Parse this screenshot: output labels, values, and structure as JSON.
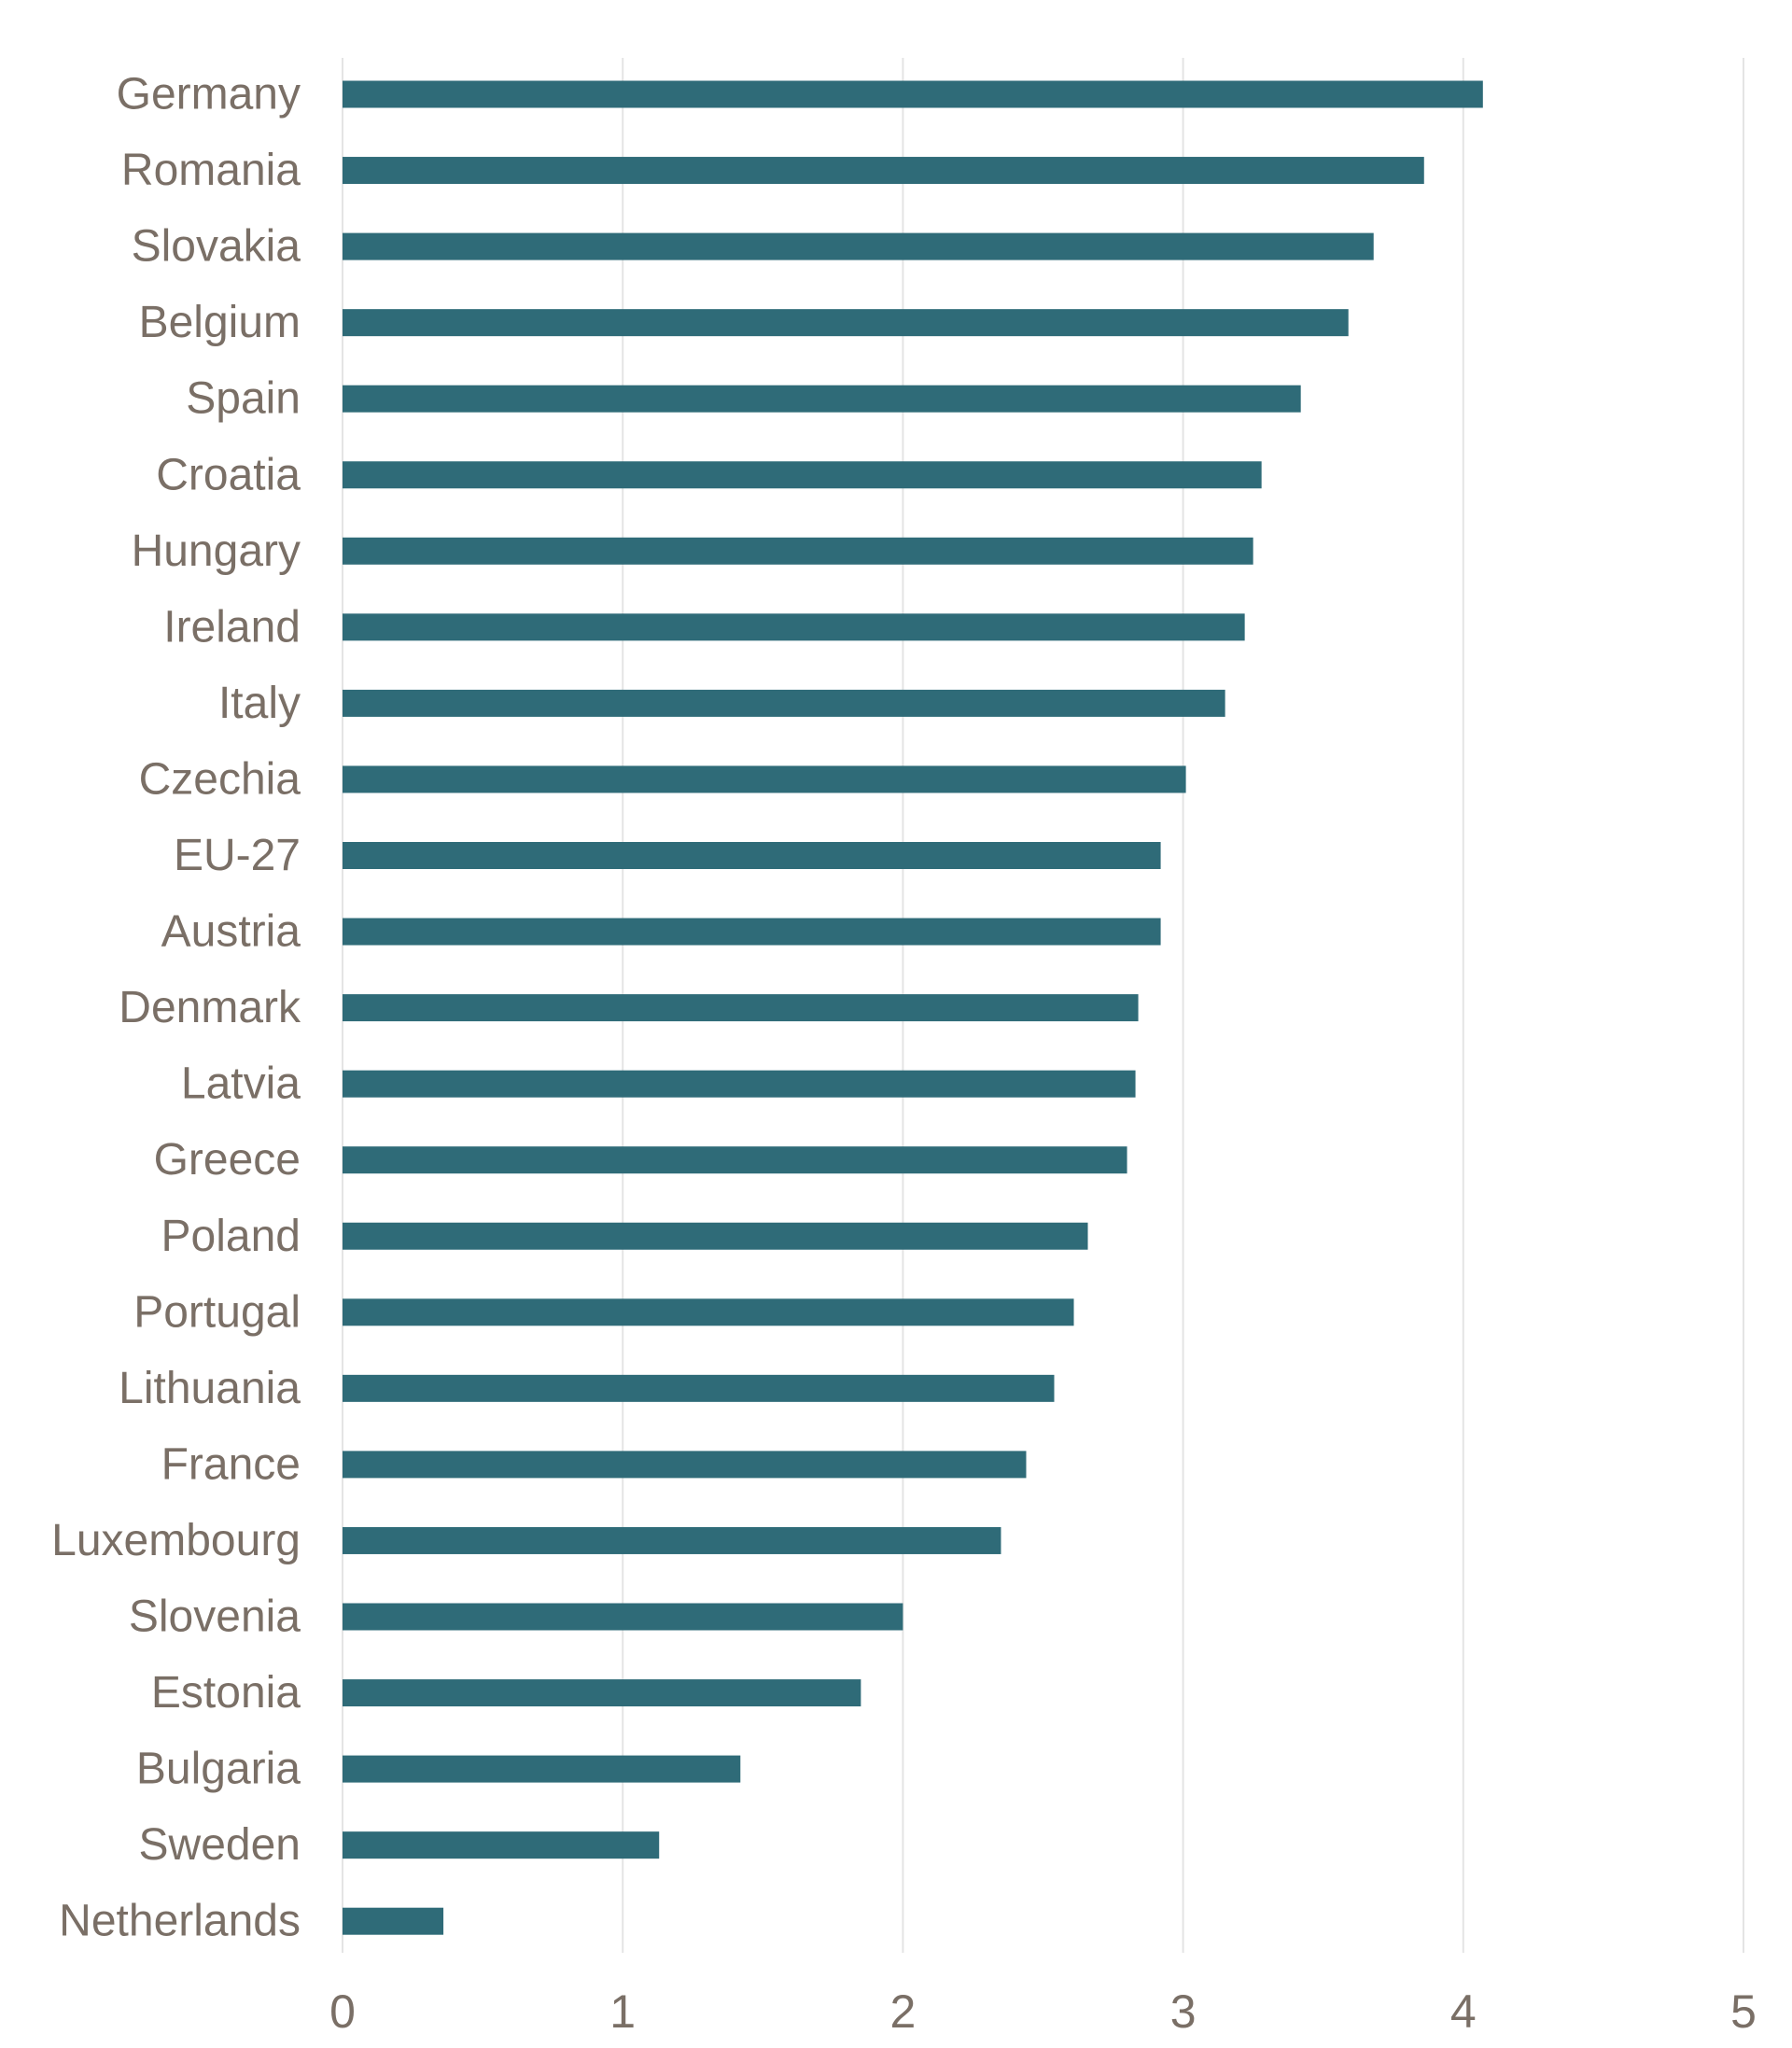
{
  "chart_data": {
    "type": "bar",
    "orientation": "horizontal",
    "categories": [
      "Germany",
      "Romania",
      "Slovakia",
      "Belgium",
      "Spain",
      "Croatia",
      "Hungary",
      "Ireland",
      "Italy",
      "Czechia",
      "EU-27",
      "Austria",
      "Denmark",
      "Latvia",
      "Greece",
      "Poland",
      "Portugal",
      "Lithuania",
      "France",
      "Luxembourg",
      "Slovenia",
      "Estonia",
      "Bulgaria",
      "Sweden",
      "Netherlands"
    ],
    "values": [
      4.07,
      3.86,
      3.68,
      3.59,
      3.42,
      3.28,
      3.25,
      3.22,
      3.15,
      3.01,
      2.92,
      2.92,
      2.84,
      2.83,
      2.8,
      2.66,
      2.61,
      2.54,
      2.44,
      2.35,
      2.0,
      1.85,
      1.42,
      1.13,
      0.36
    ],
    "xlim": [
      0,
      5
    ],
    "xticks": [
      "0",
      "1",
      "2",
      "3",
      "4",
      "5"
    ],
    "grid": "vertical",
    "legend": "none",
    "colors": {
      "bar": "#2F6B78",
      "grid": "#E4E4E4",
      "label": "#7A6F66"
    }
  }
}
